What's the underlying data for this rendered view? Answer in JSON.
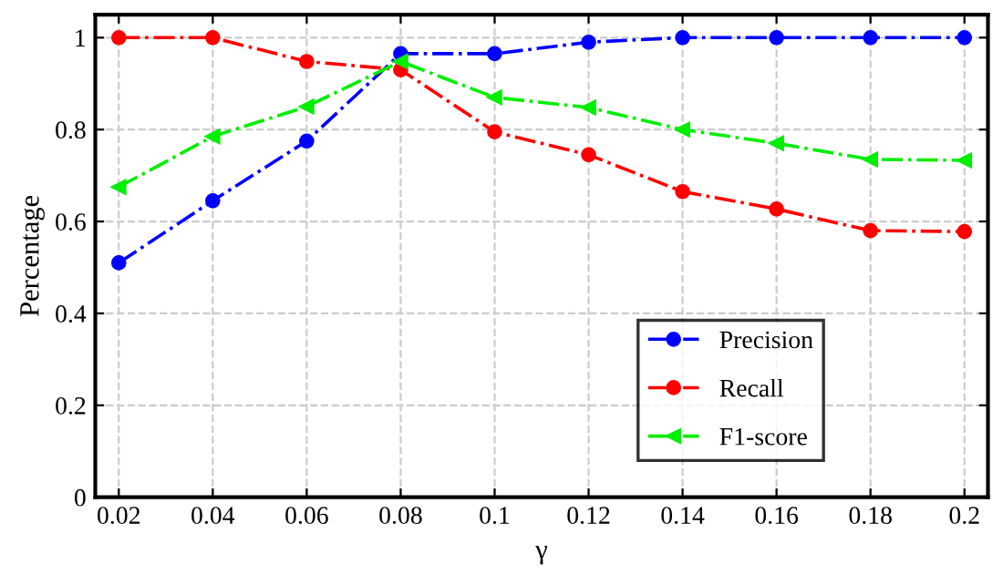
{
  "chart_data": {
    "type": "line",
    "xlabel": "γ",
    "ylabel": "Percentage",
    "x": [
      0.02,
      0.04,
      0.06,
      0.08,
      0.1,
      0.12,
      0.14,
      0.16,
      0.18,
      0.2
    ],
    "series": [
      {
        "name": "Precision",
        "color": "#0000ff",
        "marker": "circle",
        "values": [
          0.51,
          0.645,
          0.775,
          0.965,
          0.965,
          0.99,
          1,
          1,
          1,
          1
        ]
      },
      {
        "name": "Recall",
        "color": "#ff0000",
        "marker": "circle",
        "values": [
          1,
          1,
          0.948,
          0.93,
          0.795,
          0.745,
          0.665,
          0.627,
          0.58,
          0.578
        ]
      },
      {
        "name": "F1-score",
        "color": "#00ee00",
        "marker": "triangle",
        "values": [
          0.675,
          0.785,
          0.85,
          0.948,
          0.87,
          0.848,
          0.8,
          0.77,
          0.735,
          0.733
        ]
      }
    ],
    "xlim": [
      0.015,
      0.205
    ],
    "ylim": [
      0,
      1.05
    ],
    "xticks": [
      0.02,
      0.04,
      0.06,
      0.08,
      0.1,
      0.12,
      0.14,
      0.16,
      0.18,
      0.2
    ],
    "yticks": [
      0,
      0.2,
      0.4,
      0.6,
      0.8,
      1
    ],
    "grid": true,
    "legend": "bottom right",
    "line_style": "dashed"
  }
}
